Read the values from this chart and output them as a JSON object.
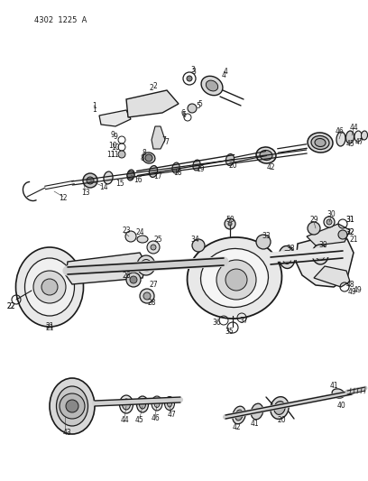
{
  "background_color": "#ffffff",
  "line_color": "#1a1a1a",
  "text_color": "#1a1a1a",
  "figsize": [
    4.08,
    5.33
  ],
  "dpi": 100,
  "diagram_id": "4302  1225  A",
  "font_size": 5.5,
  "lw_main": 1.0,
  "lw_thin": 0.6,
  "lw_med": 0.8
}
